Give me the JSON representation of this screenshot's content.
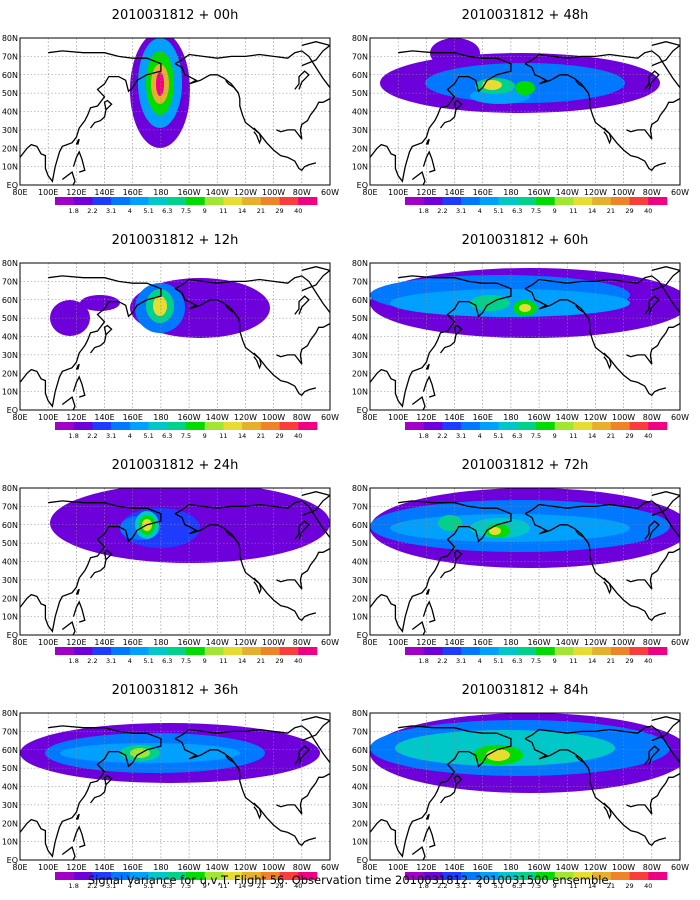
{
  "panels": [
    {
      "title": "2010031812 + 00h",
      "blobs": [
        {
          "x": 160,
          "y": 62,
          "rx": 30,
          "ry": 58,
          "level": 1
        },
        {
          "x": 158,
          "y": 51,
          "rx": 12,
          "ry": 14,
          "level": 1
        },
        {
          "x": 160,
          "y": 55,
          "rx": 22,
          "ry": 45,
          "level": 4
        },
        {
          "x": 160,
          "y": 55,
          "rx": 14,
          "ry": 32,
          "level": 7
        },
        {
          "x": 160,
          "y": 56,
          "rx": 9,
          "ry": 20,
          "level": 10
        },
        {
          "x": 160,
          "y": 56,
          "rx": 4,
          "ry": 12,
          "level": 13
        }
      ]
    },
    {
      "title": "2010031812 + 48h",
      "blobs": [
        {
          "x": 170,
          "y": 55,
          "rx": 140,
          "ry": 30,
          "level": 1
        },
        {
          "x": 105,
          "y": 25,
          "rx": 25,
          "ry": 15,
          "level": 1
        },
        {
          "x": 175,
          "y": 55,
          "rx": 100,
          "ry": 20,
          "level": 3
        },
        {
          "x": 150,
          "y": 68,
          "rx": 30,
          "ry": 8,
          "level": 4
        },
        {
          "x": 145,
          "y": 58,
          "rx": 20,
          "ry": 8,
          "level": 6
        },
        {
          "x": 175,
          "y": 60,
          "rx": 10,
          "ry": 7,
          "level": 7
        },
        {
          "x": 142,
          "y": 57,
          "rx": 10,
          "ry": 5,
          "level": 9
        }
      ]
    },
    {
      "title": "2010031812 + 12h",
      "blobs": [
        {
          "x": 200,
          "y": 55,
          "rx": 70,
          "ry": 30,
          "level": 1
        },
        {
          "x": 100,
          "y": 50,
          "rx": 20,
          "ry": 8,
          "level": 1
        },
        {
          "x": 70,
          "y": 65,
          "rx": 20,
          "ry": 18,
          "level": 1
        },
        {
          "x": 160,
          "y": 55,
          "rx": 25,
          "ry": 25,
          "level": 3
        },
        {
          "x": 160,
          "y": 53,
          "rx": 14,
          "ry": 17,
          "level": 6
        },
        {
          "x": 160,
          "y": 53,
          "rx": 7,
          "ry": 10,
          "level": 9
        }
      ]
    },
    {
      "title": "2010031812 + 60h",
      "blobs": [
        {
          "x": 180,
          "y": 50,
          "rx": 160,
          "ry": 35,
          "level": 1
        },
        {
          "x": 150,
          "y": 42,
          "rx": 130,
          "ry": 20,
          "level": 3
        },
        {
          "x": 160,
          "y": 50,
          "rx": 120,
          "ry": 14,
          "level": 4
        },
        {
          "x": 140,
          "y": 50,
          "rx": 20,
          "ry": 8,
          "level": 6
        },
        {
          "x": 175,
          "y": 55,
          "rx": 12,
          "ry": 8,
          "level": 7
        },
        {
          "x": 175,
          "y": 55,
          "rx": 6,
          "ry": 4,
          "level": 9
        }
      ]
    },
    {
      "title": "2010031812 + 24h",
      "blobs": [
        {
          "x": 190,
          "y": 45,
          "rx": 140,
          "ry": 40,
          "level": 1
        },
        {
          "x": 160,
          "y": 50,
          "rx": 40,
          "ry": 20,
          "level": 2
        },
        {
          "x": 140,
          "y": 50,
          "rx": 20,
          "ry": 12,
          "level": 3
        },
        {
          "x": 147,
          "y": 47,
          "rx": 12,
          "ry": 14,
          "level": 5
        },
        {
          "x": 147,
          "y": 47,
          "rx": 8,
          "ry": 10,
          "level": 7
        },
        {
          "x": 147,
          "y": 47,
          "rx": 5,
          "ry": 6,
          "level": 9
        }
      ]
    },
    {
      "title": "2010031812 + 72h",
      "blobs": [
        {
          "x": 180,
          "y": 50,
          "rx": 160,
          "ry": 40,
          "level": 1
        },
        {
          "x": 170,
          "y": 48,
          "rx": 150,
          "ry": 26,
          "level": 3
        },
        {
          "x": 160,
          "y": 50,
          "rx": 120,
          "ry": 14,
          "level": 4
        },
        {
          "x": 150,
          "y": 50,
          "rx": 30,
          "ry": 10,
          "level": 5
        },
        {
          "x": 100,
          "y": 45,
          "rx": 12,
          "ry": 8,
          "level": 6
        },
        {
          "x": 148,
          "y": 53,
          "rx": 12,
          "ry": 7,
          "level": 7
        },
        {
          "x": 145,
          "y": 53,
          "rx": 6,
          "ry": 4,
          "level": 9
        }
      ]
    },
    {
      "title": "2010031812 + 36h",
      "blobs": [
        {
          "x": 170,
          "y": 50,
          "rx": 150,
          "ry": 30,
          "level": 1
        },
        {
          "x": 155,
          "y": 50,
          "rx": 110,
          "ry": 20,
          "level": 3
        },
        {
          "x": 150,
          "y": 50,
          "rx": 90,
          "ry": 10,
          "level": 4
        },
        {
          "x": 140,
          "y": 50,
          "rx": 20,
          "ry": 8,
          "level": 6
        },
        {
          "x": 140,
          "y": 50,
          "rx": 10,
          "ry": 5,
          "level": 8
        }
      ]
    },
    {
      "title": "2010031812 + 84h",
      "blobs": [
        {
          "x": 180,
          "y": 50,
          "rx": 160,
          "ry": 40,
          "level": 1
        },
        {
          "x": 170,
          "y": 45,
          "rx": 150,
          "ry": 28,
          "level": 3
        },
        {
          "x": 155,
          "y": 45,
          "rx": 110,
          "ry": 18,
          "level": 5
        },
        {
          "x": 148,
          "y": 52,
          "rx": 25,
          "ry": 10,
          "level": 7
        },
        {
          "x": 148,
          "y": 52,
          "rx": 12,
          "ry": 6,
          "level": 9
        }
      ]
    }
  ],
  "lat_labels": [
    "80N",
    "70N",
    "60N",
    "50N",
    "40N",
    "30N",
    "20N",
    "10N",
    "EQ"
  ],
  "lon_labels": [
    "80E",
    "100E",
    "120E",
    "140E",
    "160E",
    "180",
    "160W",
    "140W",
    "120W",
    "100W",
    "80W",
    "60W"
  ],
  "colorbar": {
    "values": [
      "1.8",
      "2.2",
      "3.1",
      "4",
      "5.1",
      "6.3",
      "7.5",
      "9",
      "11",
      "14",
      "21",
      "29",
      "40"
    ],
    "colors": [
      "#a000c8",
      "#6e00dc",
      "#1e3cff",
      "#0078ff",
      "#00a0ff",
      "#00c8c8",
      "#00d28c",
      "#00dc00",
      "#a0e632",
      "#e6dc32",
      "#e6af2d",
      "#f08228",
      "#fa3c3c",
      "#f00082"
    ]
  },
  "footer": "Signal Variance for u,v,T. Flight 56. Observation time 2010031812. 2010031500 ensemble."
}
